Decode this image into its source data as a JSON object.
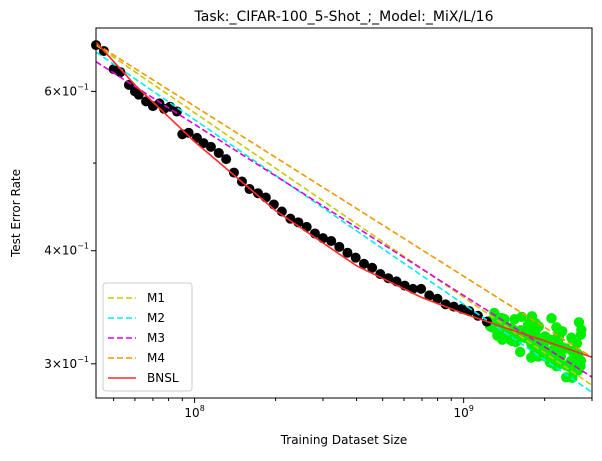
{
  "chart_data": {
    "type": "line",
    "title": "Task:_CIFAR-100_5-Shot_;_Model:_MiX/L/16",
    "xlabel": "Training Dataset Size",
    "ylabel": "Test Error Rate",
    "xscale": "log",
    "yscale": "log",
    "xlim": [
      43000000,
      3000000000
    ],
    "ylim": [
      0.275,
      0.705
    ],
    "xticks": [
      {
        "value": 100000000,
        "base": "10",
        "exp": "8"
      },
      {
        "value": 1000000000,
        "base": "10",
        "exp": "9"
      }
    ],
    "yticks": [
      {
        "value": 0.3,
        "mant": "3",
        "exp": "−1"
      },
      {
        "value": 0.4,
        "mant": "4",
        "exp": "−1"
      },
      {
        "value": 0.6,
        "mant": "6",
        "exp": "−1"
      }
    ],
    "legend_position": "lower left",
    "grid": false,
    "series": [
      {
        "name": "M1",
        "style": "dashed",
        "color": "#c8c800",
        "x": [
          43000000,
          3000000000
        ],
        "y": [
          0.675,
          0.284
        ]
      },
      {
        "name": "M2",
        "style": "dashed",
        "color": "#00eeee",
        "x": [
          43000000,
          3000000000
        ],
        "y": [
          0.663,
          0.279
        ]
      },
      {
        "name": "M3",
        "style": "dashed",
        "color": "#dd00dd",
        "x": [
          43000000,
          3000000000
        ],
        "y": [
          0.647,
          0.29
        ]
      },
      {
        "name": "M4",
        "style": "dashed",
        "color": "#ee9900",
        "x": [
          43000000,
          3000000000
        ],
        "y": [
          0.677,
          0.305
        ]
      },
      {
        "name": "BNSL",
        "style": "solid",
        "color": "#ff2a2a",
        "x": [
          43000000,
          60000000,
          100000000,
          200000000,
          400000000,
          700000000,
          1000000000,
          1500000000,
          2000000000,
          3000000000
        ],
        "y": [
          0.68,
          0.61,
          0.528,
          0.443,
          0.385,
          0.355,
          0.341,
          0.327,
          0.318,
          0.305
        ]
      }
    ],
    "train_points": {
      "color": "#000000",
      "x": [
        43000000,
        46000000,
        50000000,
        53000000,
        57000000,
        60000000,
        62000000,
        66000000,
        70000000,
        74000000,
        77000000,
        81000000,
        86000000,
        90000000,
        95000000,
        102000000,
        108000000,
        115000000,
        123000000,
        131000000,
        140000000,
        150000000,
        160000000,
        172000000,
        184000000,
        197000000,
        211000000,
        227000000,
        243000000,
        261000000,
        280000000,
        300000000,
        322000000,
        345000000,
        370000000,
        397000000,
        426000000,
        457000000,
        490000000,
        525000000,
        563000000,
        604000000,
        648000000,
        695000000,
        745000000,
        799000000,
        857000000,
        919000000,
        985000000,
        1050000000,
        1130000000,
        1220000000
      ],
      "y": [
        0.675,
        0.665,
        0.635,
        0.63,
        0.61,
        0.6,
        0.595,
        0.585,
        0.578,
        0.582,
        0.574,
        0.577,
        0.57,
        0.538,
        0.54,
        0.533,
        0.526,
        0.521,
        0.513,
        0.505,
        0.488,
        0.477,
        0.468,
        0.463,
        0.458,
        0.45,
        0.442,
        0.434,
        0.43,
        0.425,
        0.418,
        0.413,
        0.41,
        0.404,
        0.398,
        0.393,
        0.387,
        0.383,
        0.377,
        0.373,
        0.37,
        0.366,
        0.363,
        0.363,
        0.357,
        0.354,
        0.349,
        0.347,
        0.345,
        0.343,
        0.339,
        0.334
      ]
    },
    "test_points": {
      "color": "#00ee00"
    }
  }
}
